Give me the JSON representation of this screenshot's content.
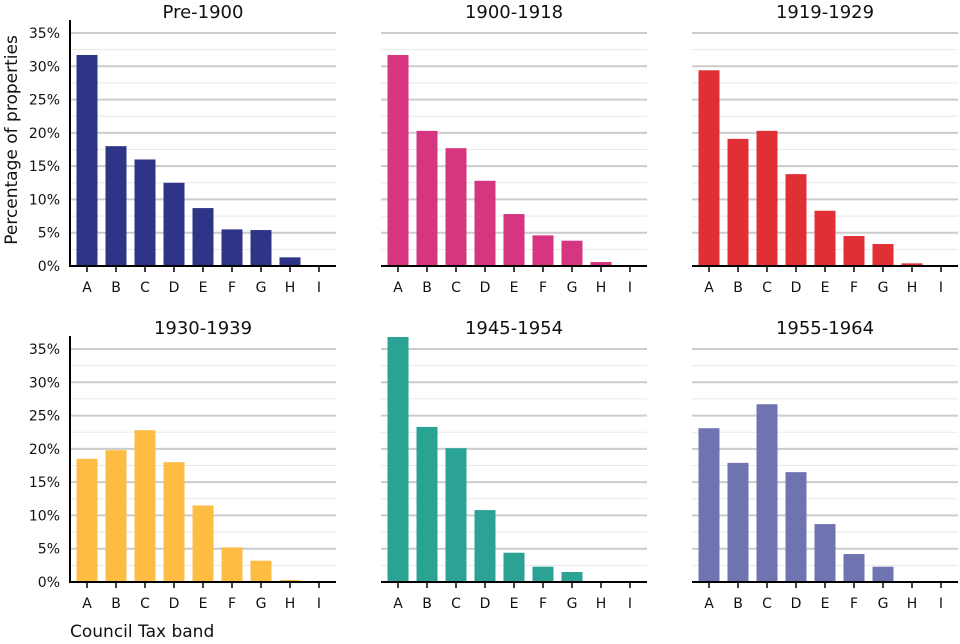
{
  "chart_data": {
    "type": "bar",
    "layout": "small-multiples",
    "categories": [
      "A",
      "B",
      "C",
      "D",
      "E",
      "F",
      "G",
      "H",
      "I"
    ],
    "xlabel": "Council Tax band",
    "ylabel": "Percentage of properties",
    "ylim": [
      0,
      35
    ],
    "yticks": [
      "0%",
      "5%",
      "10%",
      "15%",
      "20%",
      "25%",
      "30%",
      "35%"
    ],
    "ytick_values": [
      0,
      5,
      10,
      15,
      20,
      25,
      30,
      35
    ],
    "grid": true,
    "panels": [
      {
        "title": "Pre-1900",
        "color": "#2e3586",
        "values": [
          31.7,
          18.0,
          16.0,
          12.5,
          8.7,
          5.5,
          5.4,
          1.3,
          0.0
        ]
      },
      {
        "title": "1900-1918",
        "color": "#d6357f",
        "values": [
          31.7,
          20.3,
          17.7,
          12.8,
          7.8,
          4.6,
          3.8,
          0.6,
          0.0
        ]
      },
      {
        "title": "1919-1929",
        "color": "#e03036",
        "values": [
          29.4,
          19.1,
          20.3,
          13.8,
          8.3,
          4.5,
          3.3,
          0.4,
          0.0
        ]
      },
      {
        "title": "1930-1939",
        "color": "#fdbd45",
        "values": [
          18.5,
          19.8,
          22.8,
          18.0,
          11.5,
          5.2,
          3.2,
          0.3,
          0.0
        ]
      },
      {
        "title": "1945-1954",
        "color": "#2ba394",
        "values": [
          36.8,
          23.3,
          20.1,
          10.8,
          4.4,
          2.3,
          1.5,
          0.0,
          0.0
        ]
      },
      {
        "title": "1955-1964",
        "color": "#6f73b0",
        "values": [
          23.1,
          17.9,
          26.7,
          16.5,
          8.7,
          4.2,
          2.3,
          0.1,
          0.0
        ]
      }
    ]
  }
}
